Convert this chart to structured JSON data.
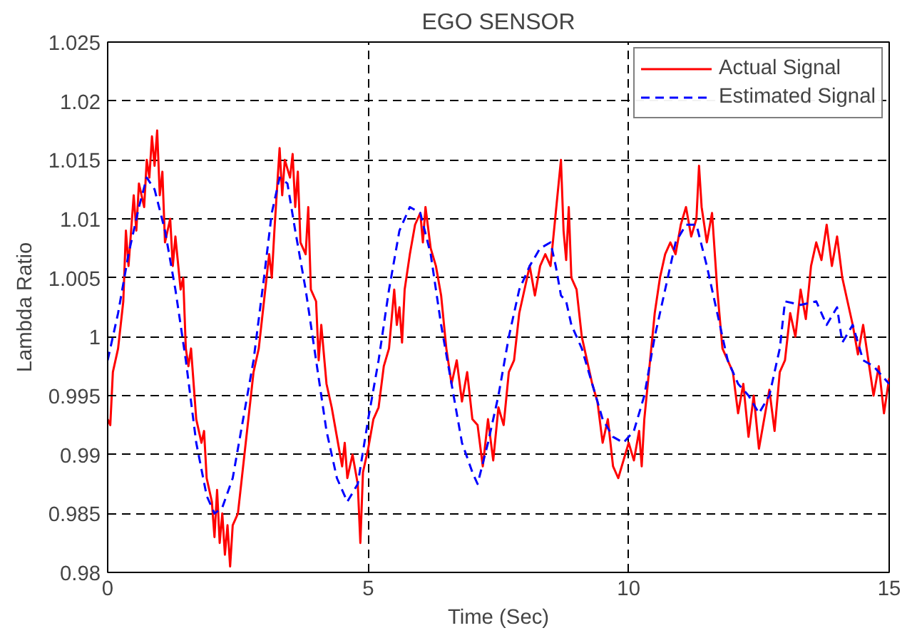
{
  "chart_data": {
    "type": "line",
    "title": "EGO SENSOR",
    "xlabel": "Time (Sec)",
    "ylabel": "Lambda Ratio",
    "xlim": [
      0,
      15
    ],
    "xticks": [
      0,
      5,
      10,
      15
    ],
    "ylim": [
      0.98,
      1.025
    ],
    "yticks": [
      0.98,
      0.985,
      0.99,
      0.995,
      1,
      1.005,
      1.01,
      1.015,
      1.02,
      1.025
    ],
    "grid": true,
    "legend": "top right",
    "marker": "none",
    "series": [
      {
        "name": "Actual Signal",
        "color": "#ff0000",
        "line_style": "solid",
        "x": [
          0,
          0.05,
          0.1,
          0.2,
          0.3,
          0.35,
          0.4,
          0.5,
          0.55,
          0.6,
          0.7,
          0.75,
          0.8,
          0.85,
          0.9,
          0.95,
          1.0,
          1.05,
          1.1,
          1.2,
          1.25,
          1.3,
          1.4,
          1.45,
          1.5,
          1.55,
          1.6,
          1.7,
          1.8,
          1.85,
          1.9,
          2.0,
          2.05,
          2.1,
          2.15,
          2.2,
          2.25,
          2.3,
          2.35,
          2.4,
          2.5,
          2.6,
          2.7,
          2.8,
          2.9,
          3.0,
          3.1,
          3.15,
          3.2,
          3.25,
          3.3,
          3.35,
          3.4,
          3.5,
          3.55,
          3.6,
          3.65,
          3.7,
          3.8,
          3.85,
          3.9,
          4.0,
          4.05,
          4.1,
          4.2,
          4.3,
          4.4,
          4.5,
          4.55,
          4.6,
          4.7,
          4.8,
          4.85,
          4.9,
          5.0,
          5.1,
          5.2,
          5.3,
          5.4,
          5.5,
          5.55,
          5.6,
          5.65,
          5.7,
          5.8,
          5.9,
          6.0,
          6.05,
          6.1,
          6.2,
          6.3,
          6.4,
          6.5,
          6.6,
          6.7,
          6.8,
          6.9,
          7.0,
          7.1,
          7.2,
          7.3,
          7.4,
          7.5,
          7.6,
          7.7,
          7.8,
          7.9,
          8.0,
          8.1,
          8.2,
          8.3,
          8.4,
          8.5,
          8.6,
          8.7,
          8.75,
          8.8,
          8.85,
          8.9,
          9.0,
          9.1,
          9.2,
          9.3,
          9.4,
          9.5,
          9.6,
          9.7,
          9.8,
          9.9,
          10.0,
          10.1,
          10.2,
          10.25,
          10.3,
          10.4,
          10.5,
          10.6,
          10.7,
          10.8,
          10.9,
          11.0,
          11.1,
          11.2,
          11.3,
          11.35,
          11.4,
          11.5,
          11.6,
          11.7,
          11.8,
          11.9,
          12.0,
          12.1,
          12.2,
          12.3,
          12.4,
          12.5,
          12.6,
          12.7,
          12.8,
          12.9,
          13.0,
          13.1,
          13.2,
          13.3,
          13.4,
          13.5,
          13.6,
          13.7,
          13.8,
          13.9,
          14.0,
          14.1,
          14.2,
          14.3,
          14.4,
          14.5,
          14.6,
          14.7,
          14.8,
          14.9,
          15.0
        ],
        "values": [
          0.993,
          0.9925,
          0.997,
          0.999,
          1.003,
          1.009,
          1.006,
          1.012,
          1.009,
          1.013,
          1.011,
          1.015,
          1.0135,
          1.017,
          1.0145,
          1.0175,
          1.012,
          1.014,
          1.008,
          1.01,
          1.006,
          1.0085,
          1.004,
          1.005,
          0.999,
          0.9975,
          0.999,
          0.993,
          0.991,
          0.992,
          0.988,
          0.986,
          0.983,
          0.987,
          0.9825,
          0.985,
          0.9815,
          0.984,
          0.9805,
          0.984,
          0.985,
          0.989,
          0.993,
          0.997,
          0.999,
          1.003,
          1.007,
          1.005,
          1.009,
          1.0125,
          1.016,
          1.012,
          1.015,
          1.0135,
          1.0155,
          1.011,
          1.014,
          1.008,
          1.007,
          1.011,
          1.004,
          1.003,
          0.998,
          1.001,
          0.996,
          0.994,
          0.9915,
          0.989,
          0.991,
          0.988,
          0.99,
          0.9875,
          0.9825,
          0.9885,
          0.9905,
          0.993,
          0.994,
          0.9975,
          0.999,
          1.004,
          1.001,
          1.0025,
          0.9995,
          1.004,
          1.007,
          1.0095,
          1.0105,
          1.008,
          1.011,
          1.0075,
          1.006,
          1.0035,
          0.999,
          0.996,
          0.998,
          0.9945,
          0.997,
          0.993,
          0.9925,
          0.989,
          0.993,
          0.9895,
          0.994,
          0.9925,
          0.997,
          0.998,
          1.002,
          1.004,
          1.006,
          1.0035,
          1.006,
          1.007,
          1.006,
          1.0105,
          1.015,
          1.009,
          1.0065,
          1.011,
          1.005,
          1.004,
          1.0,
          0.998,
          0.996,
          0.9945,
          0.991,
          0.993,
          0.989,
          0.988,
          0.9895,
          0.991,
          0.9895,
          0.992,
          0.989,
          0.993,
          0.9975,
          1.002,
          1.005,
          1.007,
          1.008,
          1.007,
          1.0095,
          1.011,
          1.0085,
          1.01,
          1.0145,
          1.011,
          1.008,
          1.0105,
          1.004,
          0.999,
          0.998,
          0.997,
          0.9935,
          0.996,
          0.9915,
          0.995,
          0.9905,
          0.993,
          0.9955,
          0.992,
          0.997,
          0.998,
          1.002,
          1.0,
          1.004,
          1.0015,
          1.006,
          1.008,
          1.0065,
          1.0095,
          1.006,
          1.0085,
          1.005,
          1.003,
          1.001,
          0.9985,
          1.001,
          0.998,
          0.995,
          0.9975,
          0.9935,
          0.9965
        ]
      },
      {
        "name": "Estimated Signal",
        "color": "#0000ff",
        "line_style": "dashed",
        "x": [
          0,
          0.2,
          0.4,
          0.6,
          0.75,
          0.9,
          1.1,
          1.3,
          1.5,
          1.7,
          1.9,
          2.05,
          2.2,
          2.4,
          2.6,
          2.8,
          3.0,
          3.15,
          3.3,
          3.45,
          3.6,
          3.8,
          4.0,
          4.2,
          4.4,
          4.6,
          4.8,
          5.0,
          5.2,
          5.4,
          5.6,
          5.8,
          6.0,
          6.2,
          6.4,
          6.6,
          6.8,
          7.0,
          7.1,
          7.3,
          7.5,
          7.7,
          7.9,
          8.1,
          8.3,
          8.5,
          8.6,
          8.7,
          8.8,
          8.9,
          9.1,
          9.3,
          9.5,
          9.7,
          9.9,
          10.1,
          10.3,
          10.5,
          10.7,
          10.9,
          11.1,
          11.3,
          11.5,
          11.7,
          11.9,
          12.1,
          12.3,
          12.5,
          12.7,
          12.9,
          13.0,
          13.3,
          13.6,
          13.8,
          14.0,
          14.1,
          14.3,
          14.5,
          14.7,
          15.0
        ],
        "values": [
          0.998,
          1.002,
          1.007,
          1.011,
          1.0135,
          1.0125,
          1.009,
          1.004,
          0.998,
          0.991,
          0.9865,
          0.985,
          0.9855,
          0.988,
          0.993,
          0.998,
          1.005,
          1.0105,
          1.0135,
          1.013,
          1.009,
          1.004,
          0.998,
          0.992,
          0.988,
          0.986,
          0.9875,
          0.993,
          0.998,
          1.004,
          1.009,
          1.011,
          1.0105,
          1.007,
          1.001,
          0.996,
          0.991,
          0.9885,
          0.9875,
          0.991,
          0.995,
          1.0,
          1.004,
          1.006,
          1.0075,
          1.008,
          1.006,
          1.0035,
          1.003,
          1.001,
          0.999,
          0.996,
          0.993,
          0.9915,
          0.991,
          0.992,
          0.995,
          1.0,
          1.004,
          1.008,
          1.0095,
          1.0095,
          1.006,
          1.002,
          0.998,
          0.996,
          0.995,
          0.9935,
          0.995,
          0.999,
          1.003,
          1.0027,
          1.003,
          1.001,
          1.0025,
          0.9995,
          1.001,
          0.998,
          0.9975,
          0.996
        ]
      }
    ]
  }
}
